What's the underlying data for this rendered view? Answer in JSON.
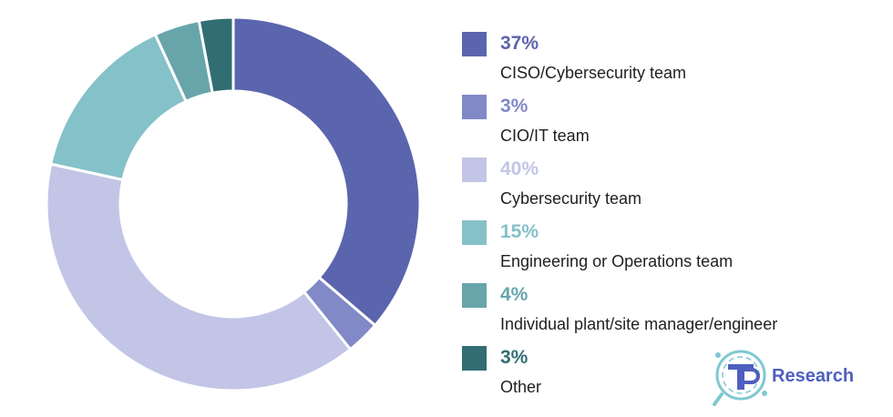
{
  "chart_data": {
    "type": "pie",
    "title": "",
    "categories": [
      "CISO/Cybersecurity team",
      "CIO/IT team",
      "Cybersecurity team",
      "Engineering or Operations team",
      "Individual plant/site manager/engineer",
      "Other"
    ],
    "values": [
      37,
      3,
      40,
      15,
      4,
      3
    ],
    "unit": "%",
    "colors": [
      "#5b65ad",
      "#8189c6",
      "#c2c5e6",
      "#85c1c8",
      "#67a5ab",
      "#326d74"
    ],
    "percent_labels": [
      "37%",
      "3%",
      "40%",
      "15%",
      "4%",
      "3%"
    ],
    "donut": true,
    "legend": "right"
  },
  "logo": {
    "text": "Research",
    "icon": "tp-research-logo-icon",
    "color": "#4f5fbf"
  }
}
